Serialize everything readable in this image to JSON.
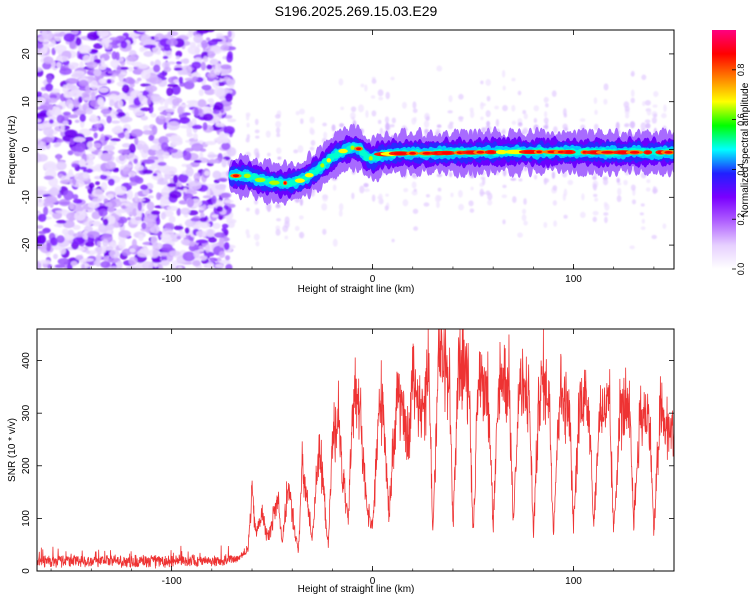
{
  "title": "S196.2025.269.15.03.E29",
  "chart_data": [
    {
      "type": "heatmap",
      "xlabel": "Height of straight line (km)",
      "ylabel": "Frequency (Hz)",
      "xlim": [
        -167,
        150
      ],
      "ylim": [
        -25,
        25
      ],
      "xticks": [
        -100,
        0,
        100
      ],
      "yticks": [
        -20,
        -10,
        0,
        10,
        20
      ],
      "noise_region_x": [
        -167,
        -70
      ],
      "ridge_x": [
        -69,
        -62,
        -55,
        -48,
        -42,
        -36,
        -30,
        -24,
        -18,
        -13,
        -9,
        -6,
        -3,
        0,
        5,
        15,
        30,
        50,
        70,
        90,
        110,
        130,
        150
      ],
      "ridge_frequency": [
        -5.5,
        -5.5,
        -6.5,
        -7,
        -7,
        -6.5,
        -5,
        -3,
        -1,
        0,
        0.5,
        0,
        -1.5,
        -2,
        -1,
        -0.8,
        -0.8,
        -0.6,
        -0.5,
        -0.5,
        -0.6,
        -0.6,
        -0.6
      ],
      "colorbar": {
        "label": "Normalized spectral amplitude",
        "range": [
          0,
          0.96
        ],
        "ticks": [
          "0.0",
          "0.2",
          "0.4",
          "0.6",
          "0.8"
        ],
        "tick_values": [
          0.0,
          0.2,
          0.4,
          0.6,
          0.8
        ],
        "colors": [
          "#ffffff",
          "#e6cfff",
          "#b060ff",
          "#7a00ff",
          "#2020ff",
          "#00ffff",
          "#00ff00",
          "#ffff00",
          "#ff8000",
          "#ff0000",
          "#ff0080"
        ]
      }
    },
    {
      "type": "line",
      "xlabel": "Height of straight line (km)",
      "ylabel": "SNR (10 * v/v)",
      "xlim": [
        -167,
        150
      ],
      "ylim": [
        0,
        460
      ],
      "xticks": [
        -100,
        0,
        100
      ],
      "yticks": [
        0,
        100,
        200,
        300,
        400
      ],
      "line_color": "#ee3333",
      "series": [
        {
          "name": "SNR",
          "x": [
            -167,
            -150,
            -130,
            -110,
            -90,
            -75,
            -68,
            -62,
            -60,
            -58,
            -55,
            -52,
            -50,
            -47,
            -45,
            -42,
            -40,
            -37,
            -35,
            -32,
            -30,
            -27,
            -25,
            -22,
            -20,
            -17,
            -15,
            -12,
            -10,
            -7,
            -5,
            -3,
            0,
            3,
            5,
            8,
            10,
            13,
            15,
            18,
            20,
            23,
            25,
            28,
            30,
            33,
            35,
            38,
            40,
            43,
            45,
            48,
            50,
            53,
            55,
            58,
            60,
            63,
            65,
            68,
            70,
            73,
            75,
            78,
            80,
            83,
            85,
            88,
            90,
            93,
            95,
            98,
            100,
            103,
            105,
            108,
            110,
            113,
            115,
            118,
            120,
            123,
            125,
            128,
            130,
            133,
            135,
            138,
            140,
            143,
            145,
            148,
            150
          ],
          "values": [
            18,
            20,
            19,
            18,
            20,
            19,
            22,
            40,
            150,
            70,
            110,
            60,
            95,
            140,
            55,
            160,
            110,
            35,
            200,
            120,
            60,
            230,
            180,
            45,
            250,
            300,
            180,
            90,
            320,
            350,
            230,
            120,
            80,
            290,
            340,
            110,
            220,
            360,
            290,
            240,
            380,
            320,
            310,
            390,
            70,
            420,
            400,
            390,
            90,
            410,
            400,
            370,
            70,
            380,
            360,
            330,
            80,
            360,
            370,
            350,
            90,
            350,
            340,
            330,
            70,
            340,
            360,
            330,
            70,
            350,
            330,
            300,
            80,
            320,
            330,
            310,
            80,
            300,
            310,
            300,
            70,
            300,
            310,
            290,
            90,
            290,
            300,
            280,
            70,
            300,
            280,
            270,
            260
          ]
        }
      ]
    }
  ]
}
